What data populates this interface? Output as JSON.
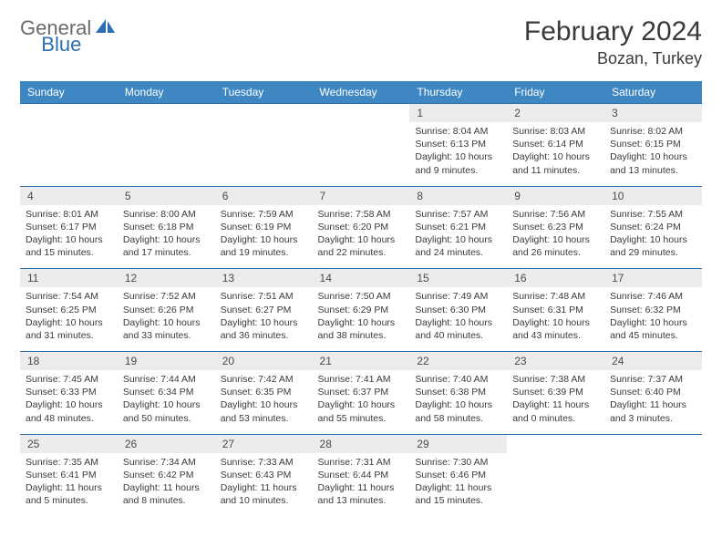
{
  "logo": {
    "gray": "General",
    "blue": "Blue"
  },
  "title": "February 2024",
  "location": "Bozan, Turkey",
  "colors": {
    "header_bg": "#3e87c3",
    "header_text": "#ffffff",
    "daynum_bg": "#ececec",
    "border": "#2b6fb0",
    "logo_gray": "#6a6a6a",
    "logo_blue": "#2b6fb0",
    "text": "#3a3a3a"
  },
  "day_names": [
    "Sunday",
    "Monday",
    "Tuesday",
    "Wednesday",
    "Thursday",
    "Friday",
    "Saturday"
  ],
  "weeks": [
    [
      null,
      null,
      null,
      null,
      {
        "n": "1",
        "sr": "Sunrise: 8:04 AM",
        "ss": "Sunset: 6:13 PM",
        "dl": "Daylight: 10 hours and 9 minutes."
      },
      {
        "n": "2",
        "sr": "Sunrise: 8:03 AM",
        "ss": "Sunset: 6:14 PM",
        "dl": "Daylight: 10 hours and 11 minutes."
      },
      {
        "n": "3",
        "sr": "Sunrise: 8:02 AM",
        "ss": "Sunset: 6:15 PM",
        "dl": "Daylight: 10 hours and 13 minutes."
      }
    ],
    [
      {
        "n": "4",
        "sr": "Sunrise: 8:01 AM",
        "ss": "Sunset: 6:17 PM",
        "dl": "Daylight: 10 hours and 15 minutes."
      },
      {
        "n": "5",
        "sr": "Sunrise: 8:00 AM",
        "ss": "Sunset: 6:18 PM",
        "dl": "Daylight: 10 hours and 17 minutes."
      },
      {
        "n": "6",
        "sr": "Sunrise: 7:59 AM",
        "ss": "Sunset: 6:19 PM",
        "dl": "Daylight: 10 hours and 19 minutes."
      },
      {
        "n": "7",
        "sr": "Sunrise: 7:58 AM",
        "ss": "Sunset: 6:20 PM",
        "dl": "Daylight: 10 hours and 22 minutes."
      },
      {
        "n": "8",
        "sr": "Sunrise: 7:57 AM",
        "ss": "Sunset: 6:21 PM",
        "dl": "Daylight: 10 hours and 24 minutes."
      },
      {
        "n": "9",
        "sr": "Sunrise: 7:56 AM",
        "ss": "Sunset: 6:23 PM",
        "dl": "Daylight: 10 hours and 26 minutes."
      },
      {
        "n": "10",
        "sr": "Sunrise: 7:55 AM",
        "ss": "Sunset: 6:24 PM",
        "dl": "Daylight: 10 hours and 29 minutes."
      }
    ],
    [
      {
        "n": "11",
        "sr": "Sunrise: 7:54 AM",
        "ss": "Sunset: 6:25 PM",
        "dl": "Daylight: 10 hours and 31 minutes."
      },
      {
        "n": "12",
        "sr": "Sunrise: 7:52 AM",
        "ss": "Sunset: 6:26 PM",
        "dl": "Daylight: 10 hours and 33 minutes."
      },
      {
        "n": "13",
        "sr": "Sunrise: 7:51 AM",
        "ss": "Sunset: 6:27 PM",
        "dl": "Daylight: 10 hours and 36 minutes."
      },
      {
        "n": "14",
        "sr": "Sunrise: 7:50 AM",
        "ss": "Sunset: 6:29 PM",
        "dl": "Daylight: 10 hours and 38 minutes."
      },
      {
        "n": "15",
        "sr": "Sunrise: 7:49 AM",
        "ss": "Sunset: 6:30 PM",
        "dl": "Daylight: 10 hours and 40 minutes."
      },
      {
        "n": "16",
        "sr": "Sunrise: 7:48 AM",
        "ss": "Sunset: 6:31 PM",
        "dl": "Daylight: 10 hours and 43 minutes."
      },
      {
        "n": "17",
        "sr": "Sunrise: 7:46 AM",
        "ss": "Sunset: 6:32 PM",
        "dl": "Daylight: 10 hours and 45 minutes."
      }
    ],
    [
      {
        "n": "18",
        "sr": "Sunrise: 7:45 AM",
        "ss": "Sunset: 6:33 PM",
        "dl": "Daylight: 10 hours and 48 minutes."
      },
      {
        "n": "19",
        "sr": "Sunrise: 7:44 AM",
        "ss": "Sunset: 6:34 PM",
        "dl": "Daylight: 10 hours and 50 minutes."
      },
      {
        "n": "20",
        "sr": "Sunrise: 7:42 AM",
        "ss": "Sunset: 6:35 PM",
        "dl": "Daylight: 10 hours and 53 minutes."
      },
      {
        "n": "21",
        "sr": "Sunrise: 7:41 AM",
        "ss": "Sunset: 6:37 PM",
        "dl": "Daylight: 10 hours and 55 minutes."
      },
      {
        "n": "22",
        "sr": "Sunrise: 7:40 AM",
        "ss": "Sunset: 6:38 PM",
        "dl": "Daylight: 10 hours and 58 minutes."
      },
      {
        "n": "23",
        "sr": "Sunrise: 7:38 AM",
        "ss": "Sunset: 6:39 PM",
        "dl": "Daylight: 11 hours and 0 minutes."
      },
      {
        "n": "24",
        "sr": "Sunrise: 7:37 AM",
        "ss": "Sunset: 6:40 PM",
        "dl": "Daylight: 11 hours and 3 minutes."
      }
    ],
    [
      {
        "n": "25",
        "sr": "Sunrise: 7:35 AM",
        "ss": "Sunset: 6:41 PM",
        "dl": "Daylight: 11 hours and 5 minutes."
      },
      {
        "n": "26",
        "sr": "Sunrise: 7:34 AM",
        "ss": "Sunset: 6:42 PM",
        "dl": "Daylight: 11 hours and 8 minutes."
      },
      {
        "n": "27",
        "sr": "Sunrise: 7:33 AM",
        "ss": "Sunset: 6:43 PM",
        "dl": "Daylight: 11 hours and 10 minutes."
      },
      {
        "n": "28",
        "sr": "Sunrise: 7:31 AM",
        "ss": "Sunset: 6:44 PM",
        "dl": "Daylight: 11 hours and 13 minutes."
      },
      {
        "n": "29",
        "sr": "Sunrise: 7:30 AM",
        "ss": "Sunset: 6:46 PM",
        "dl": "Daylight: 11 hours and 15 minutes."
      },
      null,
      null
    ]
  ]
}
